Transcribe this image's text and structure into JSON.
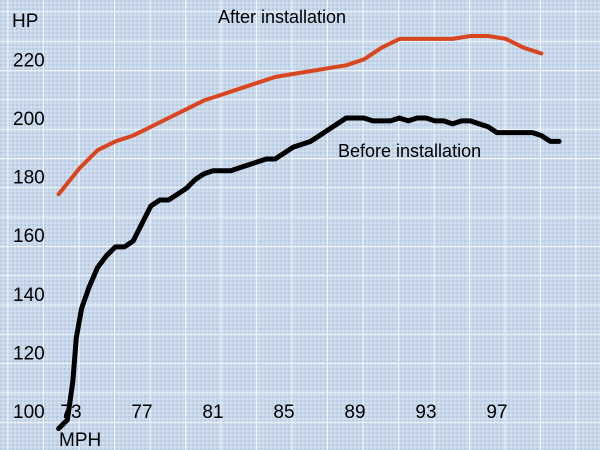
{
  "chart_data": {
    "type": "line",
    "title": "",
    "xlabel": "MPH",
    "ylabel": "HP",
    "x_ticks": [
      73,
      77,
      81,
      85,
      89,
      93,
      97
    ],
    "y_ticks": [
      100,
      120,
      140,
      160,
      180,
      200,
      220
    ],
    "xlim": [
      73,
      100.5
    ],
    "ylim": [
      94,
      232
    ],
    "grid": true,
    "series": [
      {
        "name": "After installation",
        "color": "#d9451e",
        "x": [
          72.3,
          73.5,
          74.5,
          75.5,
          76.5,
          77.5,
          78.5,
          79.5,
          80.5,
          81.5,
          82.5,
          83.5,
          84.5,
          85.5,
          86.5,
          87.5,
          88.5,
          89.5,
          90.5,
          91.5,
          92.5,
          93.5,
          94.5,
          95.5,
          96.5,
          97.5,
          98.5,
          99.5
        ],
        "y": [
          174,
          183,
          189,
          192,
          194,
          197,
          200,
          203,
          206,
          208,
          210,
          212,
          214,
          215,
          216,
          217,
          218,
          220,
          224,
          227,
          227,
          227,
          227,
          228,
          228,
          227,
          224,
          222
        ]
      },
      {
        "name": "Before installation",
        "color": "#000000",
        "x": [
          72.3,
          72.8,
          73.1,
          73.3,
          73.6,
          74.0,
          74.5,
          75.0,
          75.5,
          76.0,
          76.5,
          77.0,
          77.5,
          78.0,
          78.5,
          79.0,
          79.5,
          80.0,
          80.5,
          81.0,
          81.5,
          82.0,
          82.5,
          83.0,
          83.5,
          84.0,
          84.5,
          85.0,
          85.5,
          86.0,
          86.5,
          87.0,
          87.5,
          88.0,
          88.5,
          89.0,
          89.5,
          90.0,
          90.5,
          91.0,
          91.5,
          92.0,
          92.5,
          93.0,
          93.5,
          94.0,
          94.5,
          95.0,
          95.5,
          96.0,
          96.5,
          97.0,
          97.5,
          98.0,
          98.5,
          99.0,
          99.5,
          100.0,
          100.5
        ],
        "y": [
          94,
          97,
          110,
          125,
          135,
          142,
          149,
          153,
          156,
          156,
          158,
          164,
          170,
          172,
          172,
          174,
          176,
          179,
          181,
          182,
          182,
          182,
          183,
          184,
          185,
          186,
          186,
          188,
          190,
          191,
          192,
          194,
          196,
          198,
          200,
          200,
          200,
          199,
          199,
          199,
          200,
          199,
          200,
          200,
          199,
          199,
          198,
          199,
          199,
          198,
          197,
          195,
          195,
          195,
          195,
          195,
          194,
          192,
          192
        ]
      }
    ],
    "annotations": [
      {
        "text": "After installation",
        "series": 0
      },
      {
        "text": "Before installation",
        "series": 1
      }
    ]
  }
}
